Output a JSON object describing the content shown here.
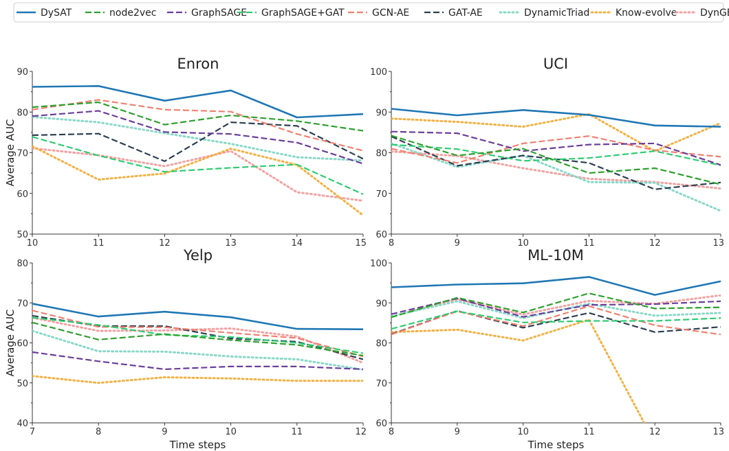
{
  "legend": {
    "placement": "top",
    "entries": [
      {
        "name": "DySAT",
        "color": "#1f77b4",
        "style": "solid"
      },
      {
        "name": "node2vec",
        "color": "#2ca02c",
        "style": "dashed"
      },
      {
        "name": "GraphSAGE",
        "color": "#6a3d9a",
        "style": "dashed"
      },
      {
        "name": "GraphSAGE+GAT",
        "color": "#2ecc71",
        "style": "dashed"
      },
      {
        "name": "GCN-AE",
        "color": "#f08070",
        "style": "dashed"
      },
      {
        "name": "GAT-AE",
        "color": "#2c3e50",
        "style": "dashed"
      },
      {
        "name": "DynamicTriad",
        "color": "#88d8c8",
        "style": "dotted"
      },
      {
        "name": "Know-evolve",
        "color": "#f5b041",
        "style": "dotted"
      },
      {
        "name": "DynGEM",
        "color": "#f4a0a0",
        "style": "dotted"
      }
    ]
  },
  "chart_data": [
    {
      "type": "line",
      "title": "Enron",
      "xlabel": "",
      "ylabel": "Average AUC",
      "x": [
        10,
        11,
        12,
        13,
        14,
        15
      ],
      "xlim": [
        10,
        15
      ],
      "ylim": [
        50,
        90
      ],
      "yticks": [
        50,
        60,
        70,
        80,
        90
      ],
      "grid": false,
      "series": [
        {
          "name": "DySAT",
          "values": [
            86.2,
            86.4,
            82.8,
            85.3,
            78.7,
            79.5
          ]
        },
        {
          "name": "node2vec",
          "values": [
            81.2,
            82.4,
            76.9,
            79.2,
            77.8,
            75.4
          ]
        },
        {
          "name": "GraphSAGE",
          "values": [
            79.0,
            80.3,
            75.1,
            74.6,
            72.5,
            67.3
          ]
        },
        {
          "name": "GraphSAGE+GAT",
          "values": [
            73.9,
            69.3,
            65.3,
            66.3,
            67.1,
            59.8
          ]
        },
        {
          "name": "GCN-AE",
          "values": [
            80.6,
            83.0,
            80.6,
            80.1,
            74.6,
            70.5
          ]
        },
        {
          "name": "GAT-AE",
          "values": [
            74.3,
            74.7,
            67.9,
            77.5,
            76.6,
            68.5
          ]
        },
        {
          "name": "DynamicTriad",
          "values": [
            78.8,
            77.5,
            74.8,
            72.2,
            68.9,
            68.1
          ]
        },
        {
          "name": "Know-evolve",
          "values": [
            71.6,
            63.4,
            64.9,
            71.0,
            67.0,
            54.6
          ]
        },
        {
          "name": "DynGEM",
          "values": [
            71.1,
            69.4,
            66.7,
            70.4,
            60.3,
            58.2
          ]
        }
      ]
    },
    {
      "type": "line",
      "title": "UCI",
      "xlabel": "",
      "ylabel": "",
      "x": [
        8,
        9,
        10,
        11,
        12,
        13
      ],
      "xlim": [
        8,
        13
      ],
      "ylim": [
        60,
        100
      ],
      "yticks": [
        60,
        70,
        80,
        90,
        100
      ],
      "grid": false,
      "series": [
        {
          "name": "DySAT",
          "values": [
            90.8,
            89.2,
            90.5,
            89.3,
            86.7,
            86.4
          ]
        },
        {
          "name": "node2vec",
          "values": [
            84.2,
            79.3,
            81.0,
            75.0,
            76.2,
            72.2
          ]
        },
        {
          "name": "GraphSAGE",
          "values": [
            85.2,
            84.8,
            80.4,
            82.0,
            82.3,
            77.0
          ]
        },
        {
          "name": "GraphSAGE+GAT",
          "values": [
            82.0,
            80.9,
            78.0,
            78.7,
            80.4,
            76.9
          ]
        },
        {
          "name": "GCN-AE",
          "values": [
            81.0,
            77.5,
            82.3,
            84.1,
            80.6,
            79.0
          ]
        },
        {
          "name": "GAT-AE",
          "values": [
            84.0,
            76.8,
            79.3,
            77.5,
            71.0,
            72.7
          ]
        },
        {
          "name": "DynamicTriad",
          "values": [
            82.3,
            76.5,
            79.3,
            72.8,
            72.6,
            65.7
          ]
        },
        {
          "name": "Know-evolve",
          "values": [
            88.4,
            87.6,
            86.4,
            89.5,
            80.4,
            87.3
          ]
        },
        {
          "name": "DynGEM",
          "values": [
            80.3,
            79.2,
            76.2,
            73.6,
            72.8,
            71.2
          ]
        }
      ]
    },
    {
      "type": "line",
      "title": "Yelp",
      "xlabel": "Time steps",
      "ylabel": "Average AUC",
      "x": [
        7,
        8,
        9,
        10,
        11,
        12
      ],
      "xlim": [
        7,
        12
      ],
      "ylim": [
        40,
        80
      ],
      "yticks": [
        40,
        50,
        60,
        70,
        80
      ],
      "grid": false,
      "series": [
        {
          "name": "DySAT",
          "values": [
            69.8,
            66.6,
            67.8,
            66.4,
            63.5,
            63.4
          ]
        },
        {
          "name": "node2vec",
          "values": [
            65.1,
            60.8,
            62.2,
            60.7,
            59.5,
            56.8
          ]
        },
        {
          "name": "GraphSAGE",
          "values": [
            57.7,
            55.4,
            53.4,
            54.1,
            54.1,
            53.4
          ]
        },
        {
          "name": "GraphSAGE+GAT",
          "values": [
            66.3,
            64.5,
            62.0,
            61.5,
            60.0,
            57.4
          ]
        },
        {
          "name": "GCN-AE",
          "values": [
            68.1,
            64.0,
            63.9,
            62.5,
            61.2,
            56.6
          ]
        },
        {
          "name": "GAT-AE",
          "values": [
            66.8,
            64.2,
            64.2,
            61.1,
            60.3,
            55.9
          ]
        },
        {
          "name": "DynamicTriad",
          "values": [
            63.0,
            57.9,
            57.8,
            56.6,
            55.9,
            53.3
          ]
        },
        {
          "name": "Know-evolve",
          "values": [
            51.7,
            50.0,
            51.4,
            51.1,
            50.5,
            50.5
          ]
        },
        {
          "name": "DynGEM",
          "values": [
            66.3,
            63.0,
            63.1,
            63.6,
            61.6,
            55.0
          ]
        }
      ]
    },
    {
      "type": "line",
      "title": "ML-10M",
      "xlabel": "Time steps",
      "ylabel": "",
      "x": [
        8,
        9,
        10,
        11,
        12,
        13
      ],
      "xlim": [
        8,
        13
      ],
      "ylim": [
        60,
        100
      ],
      "yticks": [
        60,
        70,
        80,
        90,
        100
      ],
      "grid": false,
      "series": [
        {
          "name": "DySAT",
          "values": [
            93.9,
            94.6,
            94.9,
            96.5,
            92.0,
            95.4
          ]
        },
        {
          "name": "node2vec",
          "values": [
            86.4,
            91.3,
            87.6,
            92.4,
            88.6,
            88.9
          ]
        },
        {
          "name": "GraphSAGE",
          "values": [
            87.2,
            91.1,
            86.5,
            89.5,
            89.7,
            90.4
          ]
        },
        {
          "name": "GraphSAGE+GAT",
          "values": [
            83.5,
            87.9,
            85.1,
            85.5,
            85.5,
            86.2
          ]
        },
        {
          "name": "GCN-AE",
          "values": [
            82.1,
            87.9,
            84.2,
            89.2,
            84.4,
            82.1
          ]
        },
        {
          "name": "GAT-AE",
          "values": [
            82.2,
            88.0,
            83.8,
            87.5,
            82.7,
            84.0
          ]
        },
        {
          "name": "DynamicTriad",
          "values": [
            86.7,
            90.4,
            86.2,
            89.8,
            86.8,
            87.5
          ]
        },
        {
          "name": "Know-evolve",
          "values": [
            82.7,
            83.3,
            80.6,
            85.8,
            55.0,
            null
          ]
        },
        {
          "name": "DynGEM",
          "values": [
            86.6,
            90.9,
            87.1,
            90.5,
            89.8,
            91.9
          ]
        }
      ]
    }
  ]
}
